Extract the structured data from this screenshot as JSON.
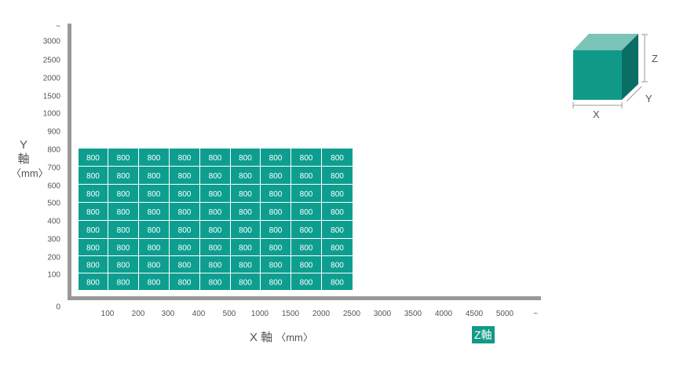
{
  "chart_data": {
    "type": "heatmap",
    "x_ticks": [
      "100",
      "200",
      "300",
      "400",
      "500",
      "1000",
      "1500",
      "2000",
      "2500",
      "3000",
      "3500",
      "4000",
      "4500",
      "5000",
      "~"
    ],
    "y_ticks": [
      "0",
      "100",
      "200",
      "300",
      "400",
      "500",
      "600",
      "700",
      "800",
      "900",
      "1000",
      "1500",
      "2000",
      "2500",
      "3000",
      "~"
    ],
    "columns": 9,
    "rows": 8,
    "cell_value": "800",
    "ylabel": "Y",
    "ylabel_char": "軸",
    "ylabel_unit": "〈mm〉",
    "xlabel": "X 軸",
    "xlabel_unit": "〈mm〉",
    "z_badge": "Z軸",
    "cube_labels": {
      "x": "X",
      "y": "Y",
      "z": "Z"
    },
    "colors": {
      "cell": "#0e9e90",
      "cube_front": "#119988",
      "cube_top": "#7cc4b8",
      "cube_side": "#0a6e64",
      "axis": "#999999"
    }
  }
}
